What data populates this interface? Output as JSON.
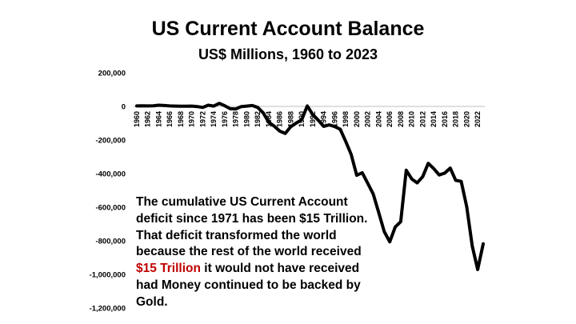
{
  "chart_data": {
    "type": "line",
    "title": "US Current Account Balance",
    "subtitle": "US$ Millions, 1960 to 2023",
    "xlabel": "",
    "ylabel": "",
    "ylim": [
      -1200000,
      200000
    ],
    "y_ticks": [
      200000,
      0,
      -200000,
      -400000,
      -600000,
      -800000,
      -1000000,
      -1200000
    ],
    "y_tick_labels": [
      "200,000",
      "0",
      "-200,000",
      "-400,000",
      "-600,000",
      "-800,000",
      "-1,000,000",
      "-1,200,000"
    ],
    "x_tick_labels": [
      "1960",
      "1962",
      "1964",
      "1966",
      "1968",
      "1970",
      "1972",
      "1974",
      "1976",
      "1978",
      "1980",
      "1982",
      "1984",
      "1986",
      "1988",
      "1990",
      "1992",
      "1994",
      "1996",
      "1998",
      "2000",
      "2002",
      "2004",
      "2006",
      "2008",
      "2010",
      "2012",
      "2014",
      "2016",
      "2018",
      "2020",
      "2022"
    ],
    "grid": false,
    "legend": "none",
    "line_color": "#000000",
    "series": [
      {
        "x": [
          1960,
          1961,
          1962,
          1963,
          1964,
          1965,
          1966,
          1967,
          1968,
          1969,
          1970,
          1971,
          1972,
          1973,
          1974,
          1975,
          1976,
          1977,
          1978,
          1979,
          1980,
          1981,
          1982,
          1983,
          1984,
          1985,
          1986,
          1987,
          1988,
          1989,
          1990,
          1991,
          1992,
          1993,
          1994,
          1995,
          1996,
          1997,
          1998,
          1999,
          2000,
          2001,
          2002,
          2003,
          2004,
          2005,
          2006,
          2007,
          2008,
          2009,
          2010,
          2011,
          2012,
          2013,
          2014,
          2015,
          2016,
          2017,
          2018,
          2019,
          2020,
          2021,
          2022,
          2023
        ],
        "values": [
          3000,
          4000,
          3000,
          4000,
          7000,
          5000,
          3000,
          2000,
          1000,
          1000,
          2000,
          -1000,
          -6000,
          7000,
          2000,
          18000,
          4000,
          -14000,
          -15000,
          -1000,
          2000,
          5000,
          -6000,
          -39000,
          -95000,
          -118000,
          -147000,
          -161000,
          -121000,
          -99000,
          -79000,
          3000,
          -48000,
          -82000,
          -119000,
          -110000,
          -120000,
          -136000,
          -209000,
          -286000,
          -410000,
          -395000,
          -458000,
          -521000,
          -632000,
          -745000,
          -806000,
          -718000,
          -686000,
          -380000,
          -432000,
          -455000,
          -418000,
          -339000,
          -370000,
          -408000,
          -397000,
          -367000,
          -440000,
          -446000,
          -597000,
          -831000,
          -971000,
          -818000
        ]
      }
    ]
  },
  "annotation": {
    "line1": "The cumulative US Current Account",
    "line2": "deficit since 1971 has been $15 Trillion.",
    "line3": "That deficit transformed the world",
    "line4": "because the rest of the world received",
    "line5_highlight": "$15 Trillion",
    "line5_rest": " it would not have received",
    "line6": "had Money continued to be backed by",
    "line7": "Gold."
  }
}
